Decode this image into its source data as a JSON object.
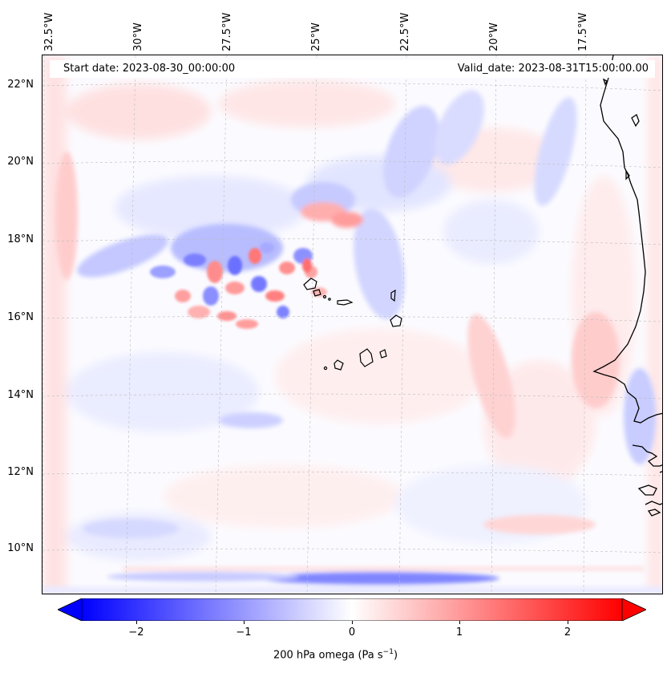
{
  "map": {
    "lon_labels": [
      "32.5°W",
      "30°W",
      "27.5°W",
      "25°W",
      "22.5°W",
      "20°W",
      "17.5°W"
    ],
    "lat_labels": [
      "22°N",
      "20°N",
      "18°N",
      "16°N",
      "14°N",
      "12°N",
      "10°N"
    ],
    "start_date": "Start date: 2023-08-30_00:00:00",
    "valid_date": "Valid_date: 2023-08-31T15:00:00.00",
    "lon_range": [
      -33,
      -15.5
    ],
    "lat_range": [
      8.8,
      22.8
    ],
    "grid": true,
    "colormap": "bwr",
    "colors": {
      "negative": "#0000ff",
      "zero": "#ffffff",
      "positive": "#ff0000"
    }
  },
  "colorbar": {
    "ticks": [
      "−2",
      "−1",
      "0",
      "1",
      "2"
    ],
    "tick_values": [
      -2,
      -1,
      0,
      1,
      2
    ],
    "range": [
      -2.5,
      2.5
    ],
    "extend": "both",
    "label_main": "200 hPa omega (Pa s",
    "label_sup": "−1",
    "label_close": ")"
  }
}
